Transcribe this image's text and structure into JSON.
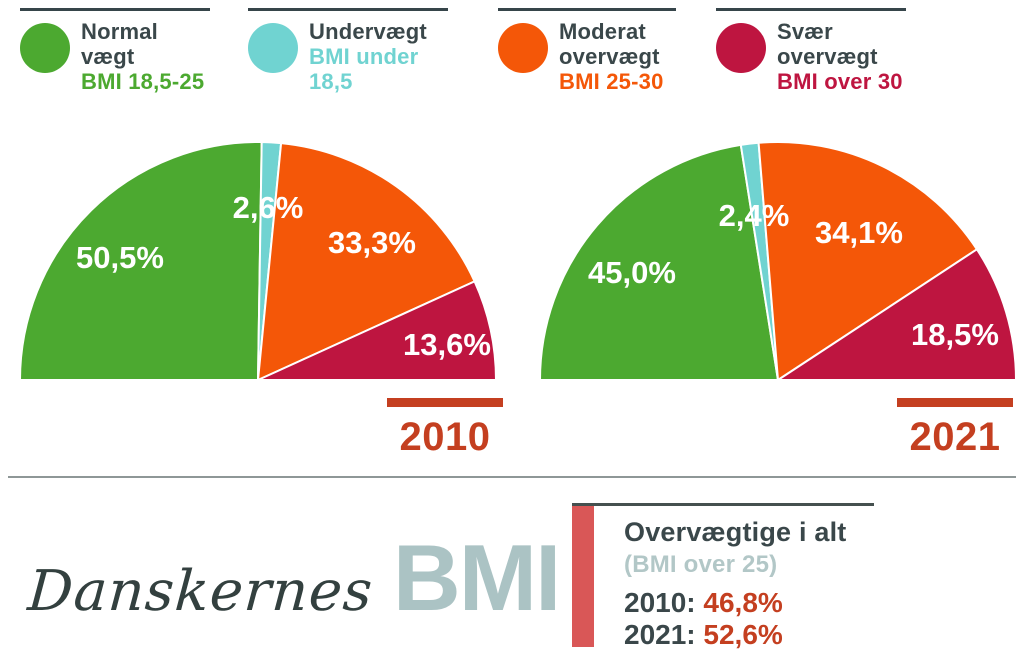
{
  "colors": {
    "green": "#4CA930",
    "cyan": "#70D3D1",
    "orange": "#F45708",
    "crimson": "#BE1540",
    "year_red": "#C43F20",
    "dark_slate": "#3A474A",
    "pale_blue": "#B2C7C7",
    "logo_bmi": "#ABC3C4",
    "divider": "#8E9797",
    "summary_bar": "#D95757"
  },
  "legend": {
    "items": [
      {
        "name": "normal-vaegt",
        "lines": [
          "Normal",
          "vægt",
          "BMI 18,5-25"
        ],
        "color": "#4CA930"
      },
      {
        "name": "undervaegt",
        "lines": [
          "Undervægt",
          "BMI under",
          "18,5"
        ],
        "color": "#70D3D1"
      },
      {
        "name": "moderat-overvaegt",
        "lines": [
          "Moderat",
          "overvægt",
          "BMI 25-30"
        ],
        "color": "#F45708"
      },
      {
        "name": "svaer-overvaegt",
        "lines": [
          "Svær",
          "overvægt",
          "BMI over 30"
        ],
        "color": "#BE1540"
      }
    ]
  },
  "years": [
    {
      "label": "2010"
    },
    {
      "label": "2021"
    }
  ],
  "logo": {
    "script": "Danskernes",
    "acronym": "BMI"
  },
  "summary": {
    "title": "Overvægtige i alt",
    "subtitle": "(BMI over 25)",
    "rows": [
      {
        "year": "2010:",
        "value": "46,8%"
      },
      {
        "year": "2021:",
        "value": "52,6%"
      }
    ]
  },
  "chart_data": [
    {
      "type": "pie",
      "variant": "semicircle",
      "title": "2010",
      "categories": [
        "Normal vægt (BMI 18,5-25)",
        "Undervægt (BMI under 18,5)",
        "Moderat overvægt (BMI 25-30)",
        "Svær overvægt (BMI over 30)"
      ],
      "segment_names": [
        "normal-vaegt",
        "undervaegt",
        "moderat-overvaegt",
        "svaer-overvaegt"
      ],
      "values": [
        50.5,
        2.6,
        33.3,
        13.6
      ],
      "labels": [
        "50,5%",
        "2,6%",
        "33,3%",
        "13,6%"
      ],
      "colors": [
        "#4CA930",
        "#70D3D1",
        "#F45708",
        "#BE1540"
      ],
      "label_positions": [
        [
          102,
          128
        ],
        [
          250,
          78
        ],
        [
          354,
          113
        ],
        [
          429,
          215
        ]
      ],
      "legend_position": "top",
      "grid": false
    },
    {
      "type": "pie",
      "variant": "semicircle",
      "title": "2021",
      "categories": [
        "Normal vægt (BMI 18,5-25)",
        "Undervægt (BMI under 18,5)",
        "Moderat overvægt (BMI 25-30)",
        "Svær overvægt (BMI over 30)"
      ],
      "segment_names": [
        "normal-vaegt",
        "undervaegt",
        "moderat-overvaegt",
        "svaer-overvaegt"
      ],
      "values": [
        45.0,
        2.4,
        34.1,
        18.5
      ],
      "labels": [
        "45,0%",
        "2,4%",
        "34,1%",
        "18,5%"
      ],
      "colors": [
        "#4CA930",
        "#70D3D1",
        "#F45708",
        "#BE1540"
      ],
      "label_positions": [
        [
          94,
          143
        ],
        [
          216,
          86
        ],
        [
          321,
          103
        ],
        [
          417,
          205
        ]
      ],
      "legend_position": "top",
      "grid": false
    }
  ]
}
